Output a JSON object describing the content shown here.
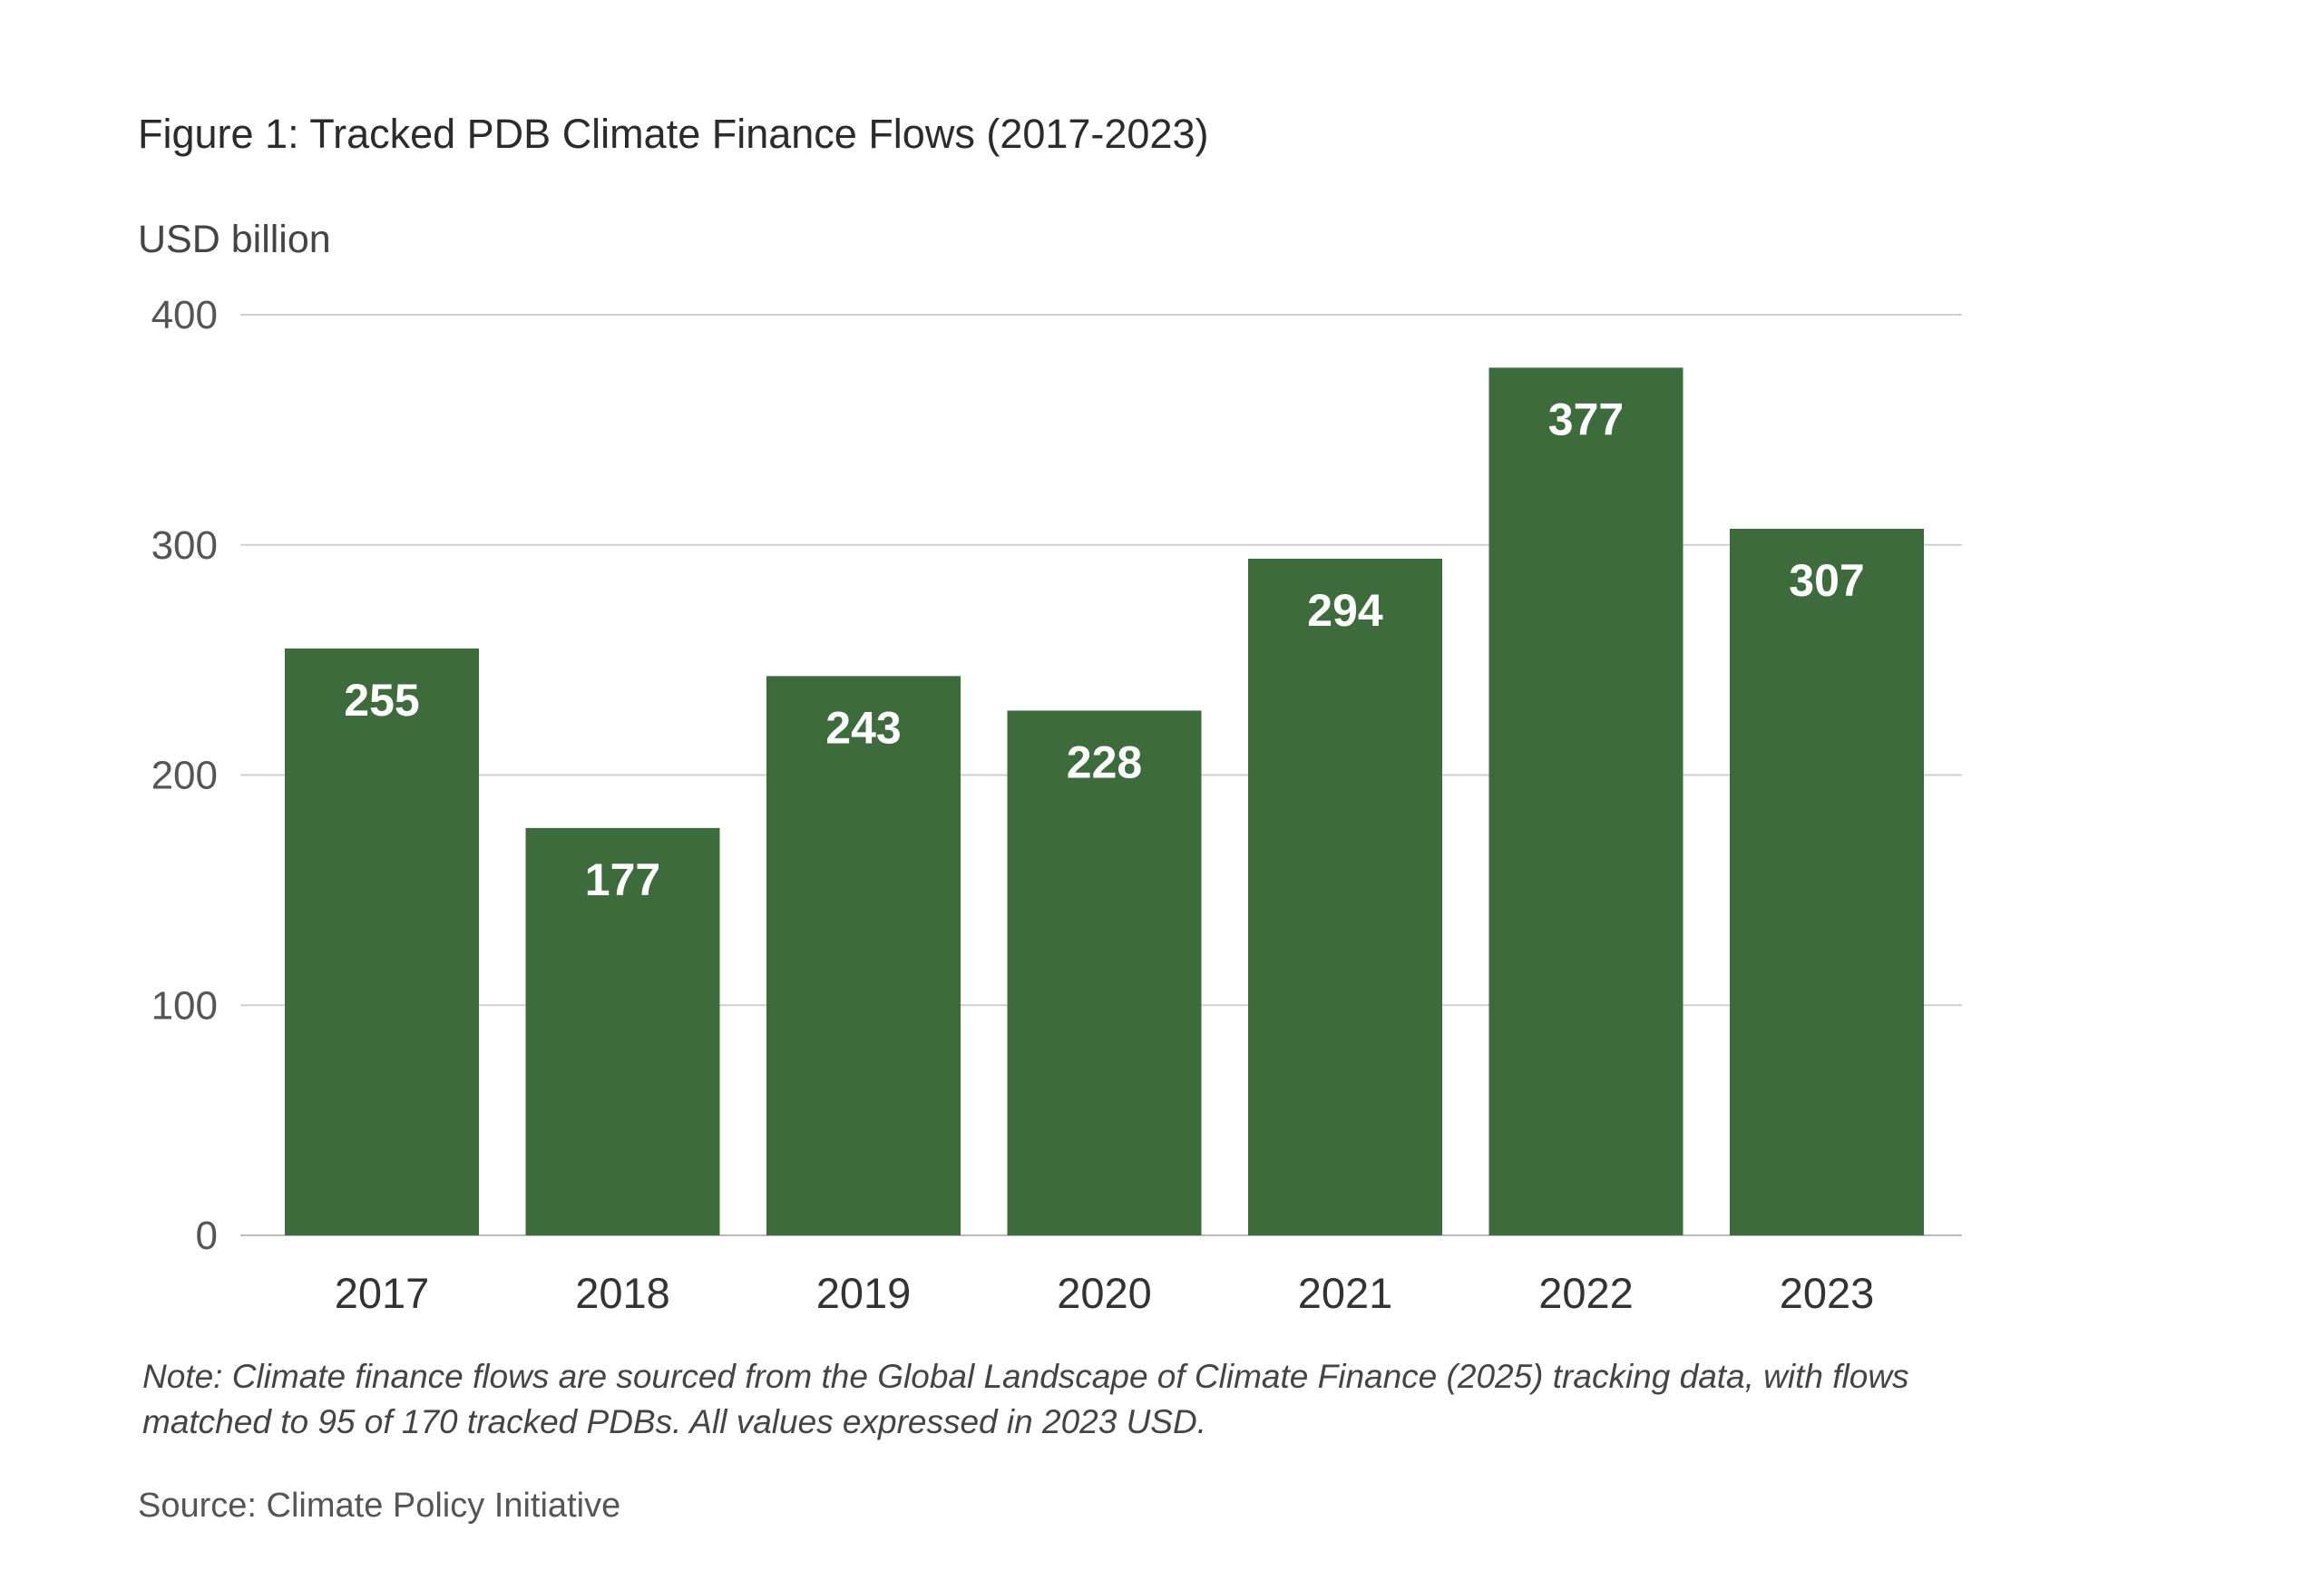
{
  "chart_data": {
    "type": "bar",
    "title": "Figure 1: Tracked PDB Climate Finance Flows (2017-2023)",
    "ylabel": "USD billion",
    "xlabel": "",
    "categories": [
      "2017",
      "2018",
      "2019",
      "2020",
      "2021",
      "2022",
      "2023"
    ],
    "values": [
      255,
      177,
      243,
      228,
      294,
      377,
      307
    ],
    "ylim": [
      0,
      400
    ],
    "yticks": [
      0,
      100,
      200,
      300,
      400
    ],
    "grid": true,
    "bar_color": "#3d6b3c",
    "note_lines": [
      "Note: Climate finance flows are sourced from the Global Landscape of Climate Finance (2025) tracking data, with flows",
      "matched to 95 of 170 tracked PDBs. All values expressed in 2023 USD."
    ],
    "source": "Source: Climate Policy Initiative"
  }
}
